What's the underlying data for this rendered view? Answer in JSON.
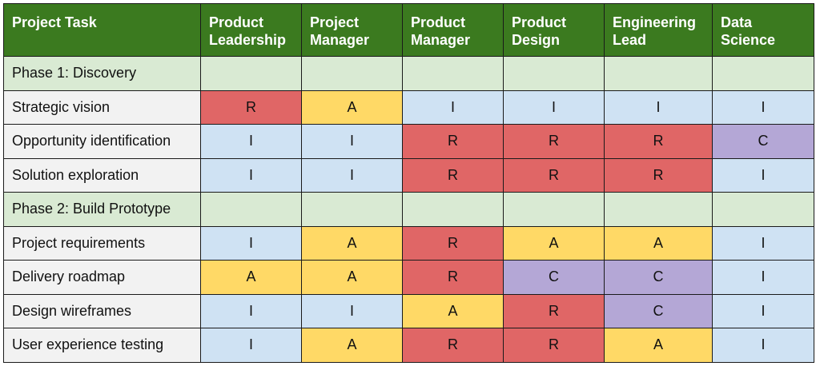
{
  "table": {
    "headers": [
      {
        "line1": "Project Task",
        "line2": ""
      },
      {
        "line1": "Product",
        "line2": "Leadership"
      },
      {
        "line1": "Project",
        "line2": "Manager"
      },
      {
        "line1": "Product",
        "line2": "Manager"
      },
      {
        "line1": "Product",
        "line2": "Design"
      },
      {
        "line1": "Engineering",
        "line2": "Lead"
      },
      {
        "line1": "Data",
        "line2": "Science"
      }
    ],
    "rows": [
      {
        "type": "phase",
        "task": "Phase 1: Discovery",
        "cells": [
          "",
          "",
          "",
          "",
          "",
          ""
        ]
      },
      {
        "type": "task",
        "task": "Strategic vision",
        "cells": [
          "R",
          "A",
          "I",
          "I",
          "I",
          "I"
        ]
      },
      {
        "type": "task",
        "task": "Opportunity identification",
        "cells": [
          "I",
          "I",
          "R",
          "R",
          "R",
          "C"
        ]
      },
      {
        "type": "task",
        "task": "Solution exploration",
        "cells": [
          "I",
          "I",
          "R",
          "R",
          "R",
          "I"
        ]
      },
      {
        "type": "phase",
        "task": "Phase 2: Build Prototype",
        "cells": [
          "",
          "",
          "",
          "",
          "",
          ""
        ]
      },
      {
        "type": "task",
        "task": "Project requirements",
        "cells": [
          "I",
          "A",
          "R",
          "A",
          "A",
          "I"
        ]
      },
      {
        "type": "task",
        "task": "Delivery roadmap",
        "cells": [
          "A",
          "A",
          "R",
          "C",
          "C",
          "I"
        ]
      },
      {
        "type": "task",
        "task": "Design wireframes",
        "cells": [
          "I",
          "I",
          "A",
          "R",
          "C",
          "I"
        ]
      },
      {
        "type": "task",
        "task": "User experience testing",
        "cells": [
          "I",
          "A",
          "R",
          "R",
          "A",
          "I"
        ]
      }
    ]
  },
  "colors": {
    "header_bg": "#3b7a1f",
    "header_text": "#ffffff",
    "phase_bg": "#d9ead3",
    "task_bg": "#f2f2f2",
    "R": "#e06666",
    "A": "#ffd966",
    "C": "#b4a7d6",
    "I": "#cfe2f3"
  }
}
